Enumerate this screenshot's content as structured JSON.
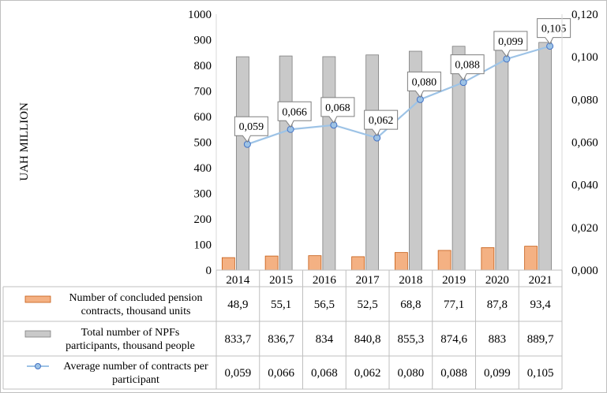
{
  "chart_data": {
    "type": "bar+line",
    "categories": [
      "2014",
      "2015",
      "2016",
      "2017",
      "2018",
      "2019",
      "2020",
      "2021"
    ],
    "ylabel": "UAH MILLION",
    "ylim_left": [
      0,
      1000
    ],
    "left_ticks": [
      "0",
      "100",
      "200",
      "300",
      "400",
      "500",
      "600",
      "700",
      "800",
      "900",
      "1000"
    ],
    "ylim_right": [
      0,
      0.12
    ],
    "right_ticks": [
      "0,000",
      "0,020",
      "0,040",
      "0,060",
      "0,080",
      "0,100",
      "0,120"
    ],
    "series": [
      {
        "name": "Number of concluded pension contracts, thousand units",
        "type": "bar",
        "axis": "left",
        "color": "#f4b183",
        "values": [
          48.9,
          55.1,
          56.5,
          52.5,
          68.8,
          77.1,
          87.8,
          93.4
        ],
        "value_labels": [
          "48,9",
          "55,1",
          "56,5",
          "52,5",
          "68,8",
          "77,1",
          "87,8",
          "93,4"
        ]
      },
      {
        "name": "Total number of NPFs participants, thousand people",
        "type": "bar",
        "axis": "left",
        "color": "#c9c9c9",
        "values": [
          833.7,
          836.7,
          834,
          840.8,
          855.3,
          874.6,
          883,
          889.7
        ],
        "value_labels": [
          "833,7",
          "836,7",
          "834",
          "840,8",
          "855,3",
          "874,6",
          "883",
          "889,7"
        ]
      },
      {
        "name": "Average number of contracts per participant",
        "type": "line",
        "axis": "right",
        "color": "#9dc3e6",
        "values": [
          0.059,
          0.066,
          0.068,
          0.062,
          0.08,
          0.088,
          0.099,
          0.105
        ],
        "value_labels": [
          "0,059",
          "0,066",
          "0,068",
          "0,062",
          "0,080",
          "0,088",
          "0,099",
          "0,105"
        ]
      }
    ]
  }
}
